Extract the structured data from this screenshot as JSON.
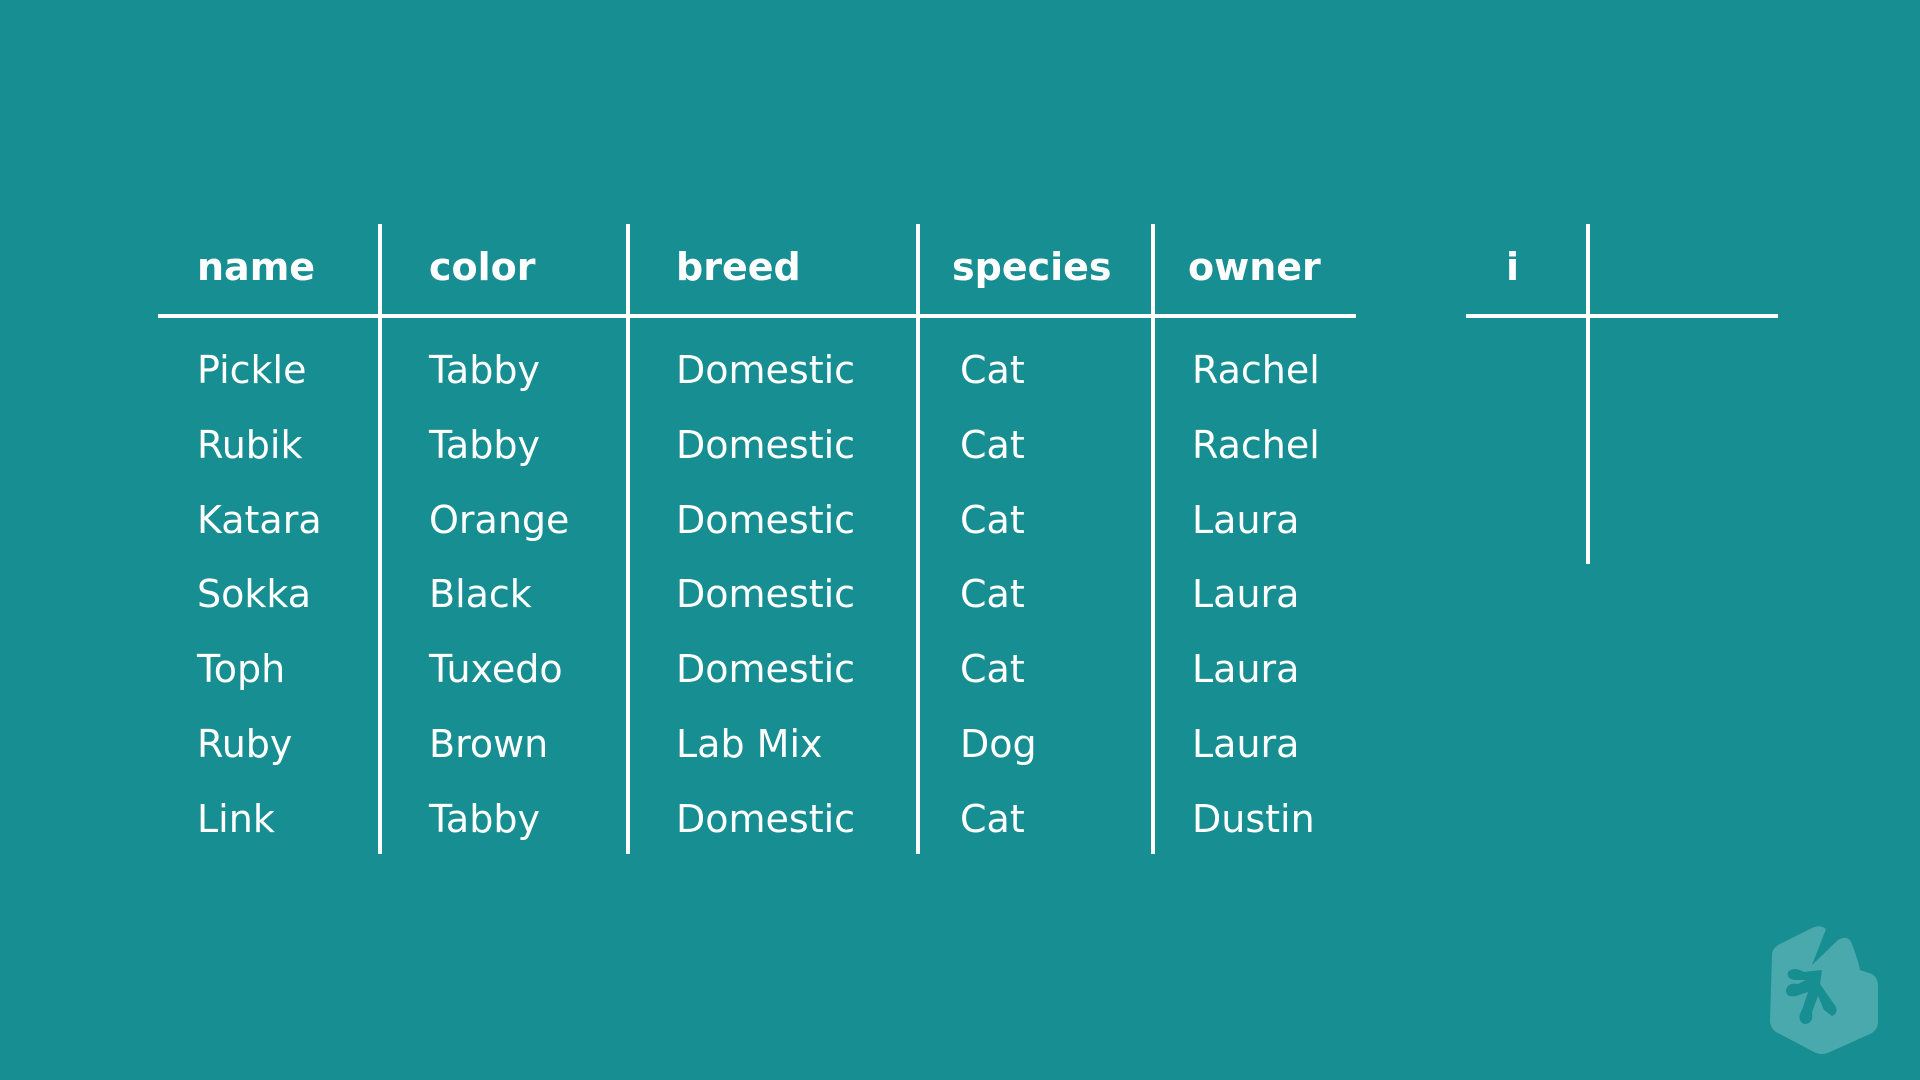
{
  "table": {
    "headers": [
      "name",
      "color",
      "breed",
      "species",
      "owner"
    ],
    "rows": [
      [
        "Pickle",
        "Tabby",
        "Domestic",
        "Cat",
        "Rachel"
      ],
      [
        "Rubik",
        "Tabby",
        "Domestic",
        "Cat",
        "Rachel"
      ],
      [
        "Katara",
        "Orange",
        "Domestic",
        "Cat",
        "Laura"
      ],
      [
        "Sokka",
        "Black",
        "Domestic",
        "Cat",
        "Laura"
      ],
      [
        "Toph",
        "Tuxedo",
        "Domestic",
        "Cat",
        "Laura"
      ],
      [
        "Ruby",
        "Brown",
        "Lab Mix",
        "Dog",
        "Laura"
      ],
      [
        "Link",
        "Tabby",
        "Domestic",
        "Cat",
        "Dustin"
      ]
    ]
  },
  "index_table": {
    "header": "i"
  },
  "colors": {
    "background": "#178e91",
    "lines": "#ffffff",
    "logo": "#4aa9ac"
  },
  "logo": {
    "icon": "treehouse-frog-hexagon-icon"
  }
}
